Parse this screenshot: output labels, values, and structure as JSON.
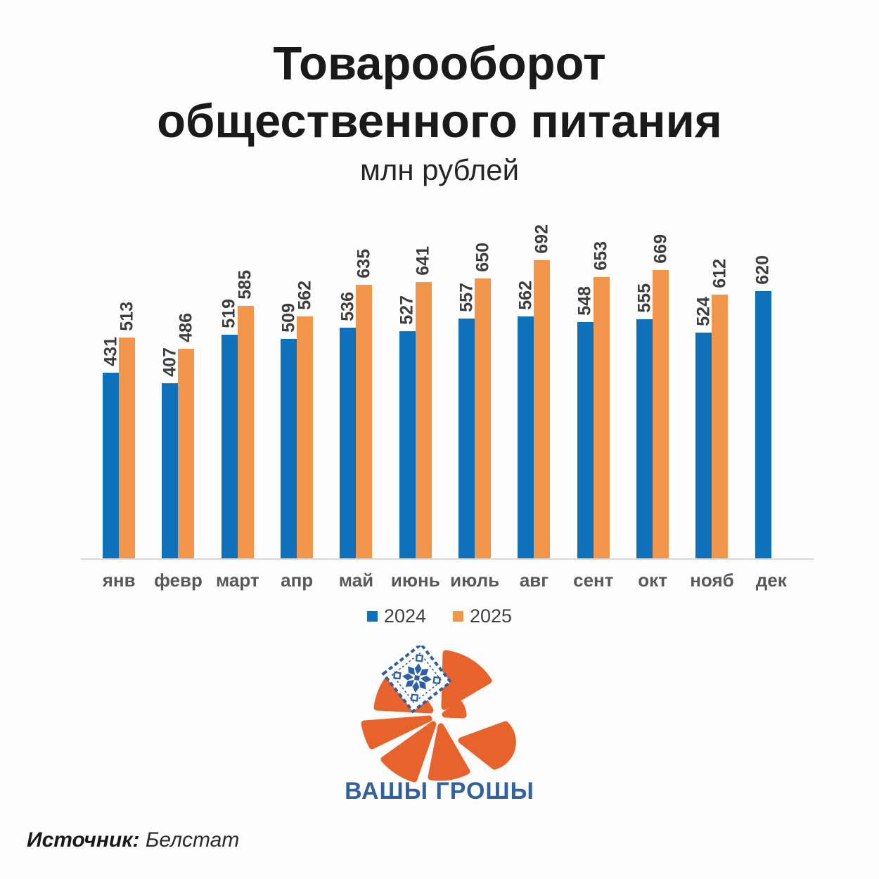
{
  "title": {
    "line1": "Товарооборот",
    "line2": "общественного питания",
    "subtitle": "млн рублей"
  },
  "chart_data": {
    "type": "bar",
    "categories": [
      "янв",
      "февр",
      "март",
      "апр",
      "май",
      "июнь",
      "июль",
      "авг",
      "сент",
      "окт",
      "нояб",
      "дек"
    ],
    "series": [
      {
        "name": "2024",
        "color": "#0d72bb",
        "values": [
          431,
          407,
          519,
          509,
          536,
          527,
          557,
          562,
          548,
          555,
          524,
          620
        ]
      },
      {
        "name": "2025",
        "color": "#f2964b",
        "values": [
          513,
          486,
          585,
          562,
          635,
          641,
          650,
          692,
          653,
          669,
          612,
          null
        ]
      }
    ],
    "title": "Товарооборот общественного питания",
    "ylabel": "млн рублей",
    "ylim": [
      0,
      700
    ],
    "grid": false,
    "legend_position": "bottom",
    "value_labels": "rotated-vertical"
  },
  "legend": {
    "items": [
      {
        "label": "2024",
        "color": "#0d72bb"
      },
      {
        "label": "2025",
        "color": "#f2964b"
      }
    ]
  },
  "logo": {
    "text": "ВАШЫ ГРОШЫ",
    "orange": "#e8622c",
    "blue": "#2e5fa3"
  },
  "source": {
    "label": "Источник:",
    "value": "Белстат"
  },
  "colors": {
    "axis_line": "#d9d9d9",
    "value_label": "#3d3d3d",
    "month_label": "#595959",
    "title_text": "#1a1a1a"
  }
}
